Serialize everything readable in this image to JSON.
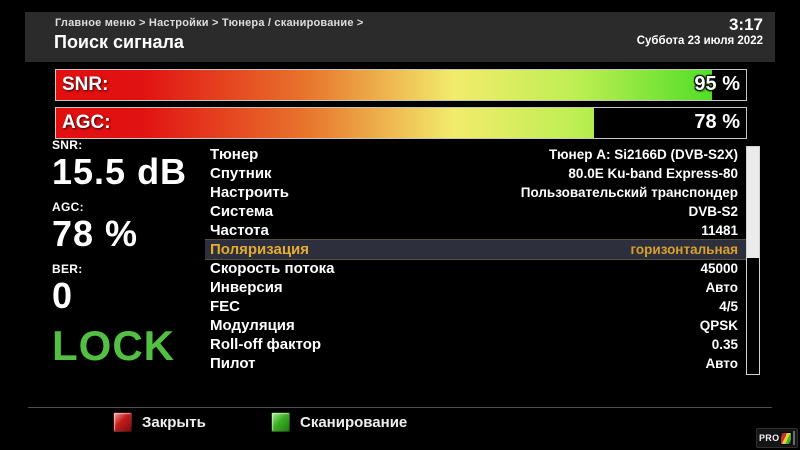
{
  "header": {
    "breadcrumb": "Главное меню > Настройки > Тюнера / сканирование >",
    "title": "Поиск сигнала",
    "time": "3:17",
    "date": "Суббота 23 июля 2022"
  },
  "bars": [
    {
      "label": "SNR:",
      "value": "95 %",
      "percent": 95
    },
    {
      "label": "AGC:",
      "value": "78 %",
      "percent": 78
    }
  ],
  "stats": {
    "snr_label": "SNR:",
    "snr_value": "15.5 dB",
    "agc_label": "AGC:",
    "agc_value": "78 %",
    "ber_label": "BER:",
    "ber_value": "0",
    "lock_status": "LOCK"
  },
  "table": {
    "rows": [
      {
        "label": "Тюнер",
        "value": "Тюнер A: Si2166D (DVB-S2X)"
      },
      {
        "label": "Спутник",
        "value": "80.0E Ku-band Express-80"
      },
      {
        "label": "Настроить",
        "value": "Пользовательский транспондер"
      },
      {
        "label": "Система",
        "value": "DVB-S2"
      },
      {
        "label": "Частота",
        "value": "11481"
      },
      {
        "label": "Поляризация",
        "value": "горизонтальная",
        "selected": true
      },
      {
        "label": "Скорость потока",
        "value": "45000"
      },
      {
        "label": "Инверсия",
        "value": "Авто"
      },
      {
        "label": "FEC",
        "value": "4/5"
      },
      {
        "label": "Модуляция",
        "value": "QPSK"
      },
      {
        "label": "Roll-off фактор",
        "value": "0.35"
      },
      {
        "label": "Пилот",
        "value": "Авто"
      }
    ]
  },
  "footer": {
    "close_label": "Закрыть",
    "scan_label": "Сканирование"
  },
  "logo": {
    "text": "PRO"
  },
  "colors": {
    "lock_green": "#53c044",
    "highlight_gold": "#e5ab2f",
    "highlight_bg": "#2d303c",
    "header_band": "#2b2b2b",
    "bar_gradient_start": "#e20f0f",
    "bar_gradient_end": "#3fd81f",
    "key_red": "#c51b1b",
    "key_green": "#3db226"
  }
}
